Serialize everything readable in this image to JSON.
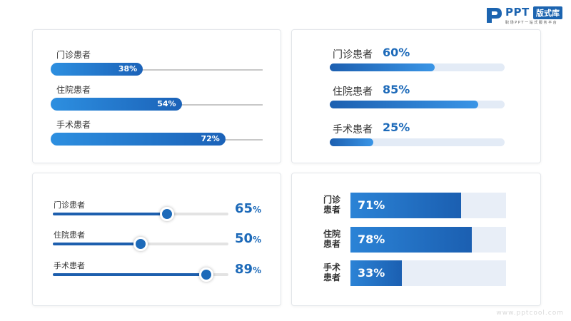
{
  "logo": {
    "mark": "logo-p-icon",
    "ppt": "PPT",
    "badge": "版式库",
    "tagline": "职场PPT一站式服务平台"
  },
  "watermark": "www.pptcool.com",
  "colors": {
    "primary": "#1d6ab9",
    "light": "#2d8fe0",
    "track": "#e3ebf6"
  },
  "chart_data": [
    {
      "type": "bar",
      "categories": [
        "门诊患者",
        "住院患者",
        "手术患者"
      ],
      "values": [
        38,
        54,
        72
      ],
      "percent_labels": [
        "38%",
        "54%",
        "72%"
      ],
      "ylim": [
        0,
        100
      ]
    },
    {
      "type": "bar",
      "categories": [
        "门诊患者",
        "住院患者",
        "手术患者"
      ],
      "values": [
        60,
        85,
        25
      ],
      "percent_labels": [
        "60%",
        "85%",
        "25%"
      ],
      "ylim": [
        0,
        100
      ]
    },
    {
      "type": "bar",
      "categories": [
        "门诊患者",
        "住院患者",
        "手术患者"
      ],
      "values": [
        65,
        50,
        89
      ],
      "value_labels": [
        "65",
        "50",
        "89"
      ],
      "unit": "%",
      "ylim": [
        0,
        100
      ]
    },
    {
      "type": "bar",
      "categories": [
        [
          "门诊",
          "患者"
        ],
        [
          "住院",
          "患者"
        ],
        [
          "手术",
          "患者"
        ]
      ],
      "values": [
        71,
        78,
        33
      ],
      "percent_labels": [
        "71%",
        "78%",
        "33%"
      ],
      "ylim": [
        0,
        100
      ]
    }
  ]
}
